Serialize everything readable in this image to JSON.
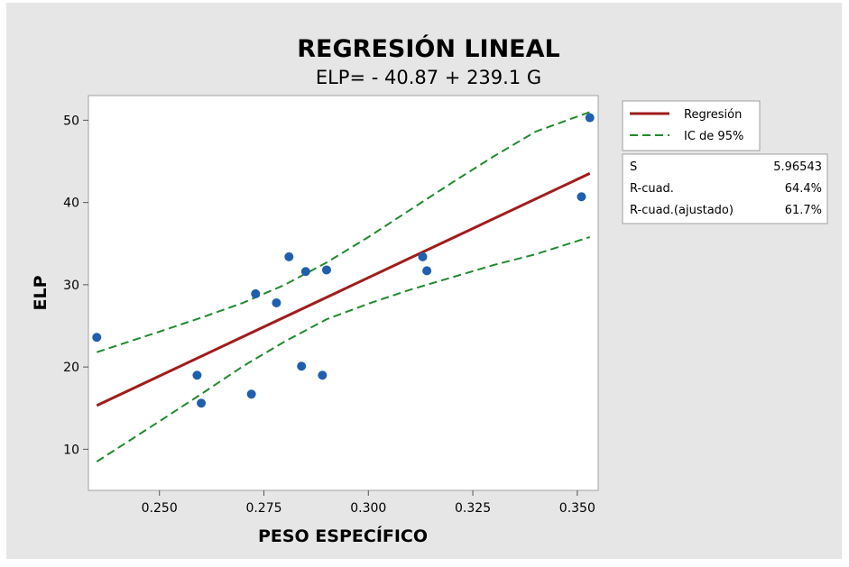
{
  "chart_data": {
    "type": "scatter",
    "title": "REGRESIÓN LINEAL",
    "subtitle": "ELP= - 40.87 + 239.1 G",
    "xlabel": "PESO ESPECÍFICO",
    "ylabel": "ELP",
    "xlim": [
      0.233,
      0.355
    ],
    "ylim": [
      5,
      53
    ],
    "x_ticks": [
      0.25,
      0.275,
      0.3,
      0.325,
      0.35
    ],
    "x_tick_labels": [
      "0.250",
      "0.275",
      "0.300",
      "0.325",
      "0.350"
    ],
    "y_ticks": [
      10,
      20,
      30,
      40,
      50
    ],
    "y_tick_labels": [
      "10",
      "20",
      "30",
      "40",
      "50"
    ],
    "grid": false,
    "legend_position": "right",
    "points": {
      "color": "#1f5fae",
      "x": [
        0.235,
        0.259,
        0.26,
        0.272,
        0.273,
        0.278,
        0.281,
        0.284,
        0.285,
        0.289,
        0.29,
        0.313,
        0.314,
        0.351,
        0.353
      ],
      "y": [
        23.6,
        19.0,
        15.6,
        16.7,
        28.9,
        27.8,
        33.4,
        20.1,
        31.6,
        19.0,
        31.8,
        33.4,
        31.7,
        40.7,
        50.3
      ]
    },
    "regression": {
      "name": "Regresión",
      "color": "#a11c1c",
      "intercept": -40.87,
      "slope": 239.1,
      "x_range": [
        0.235,
        0.353
      ]
    },
    "confidence_band": {
      "name": "IC de 95%",
      "color": "#1f8a2d",
      "x": [
        0.235,
        0.25,
        0.26,
        0.27,
        0.28,
        0.29,
        0.3,
        0.31,
        0.32,
        0.33,
        0.34,
        0.353
      ],
      "upper": [
        21.8,
        24.3,
        26.0,
        27.8,
        30.0,
        32.7,
        35.8,
        39.1,
        42.4,
        45.6,
        48.6,
        51.0
      ],
      "lower": [
        8.5,
        13.4,
        16.7,
        20.1,
        23.1,
        25.8,
        27.7,
        29.4,
        30.9,
        32.4,
        33.7,
        35.8
      ]
    },
    "legend": [
      {
        "label": "Regresión",
        "style": "solid",
        "color": "#a11c1c"
      },
      {
        "label": "IC de 95%",
        "style": "dashed",
        "color": "#1f8a2d"
      }
    ],
    "stats": [
      {
        "label": "S",
        "value": "5.96543"
      },
      {
        "label": "R-cuad.",
        "value": "64.4%"
      },
      {
        "label": "R-cuad.(ajustado)",
        "value": "61.7%"
      }
    ]
  }
}
